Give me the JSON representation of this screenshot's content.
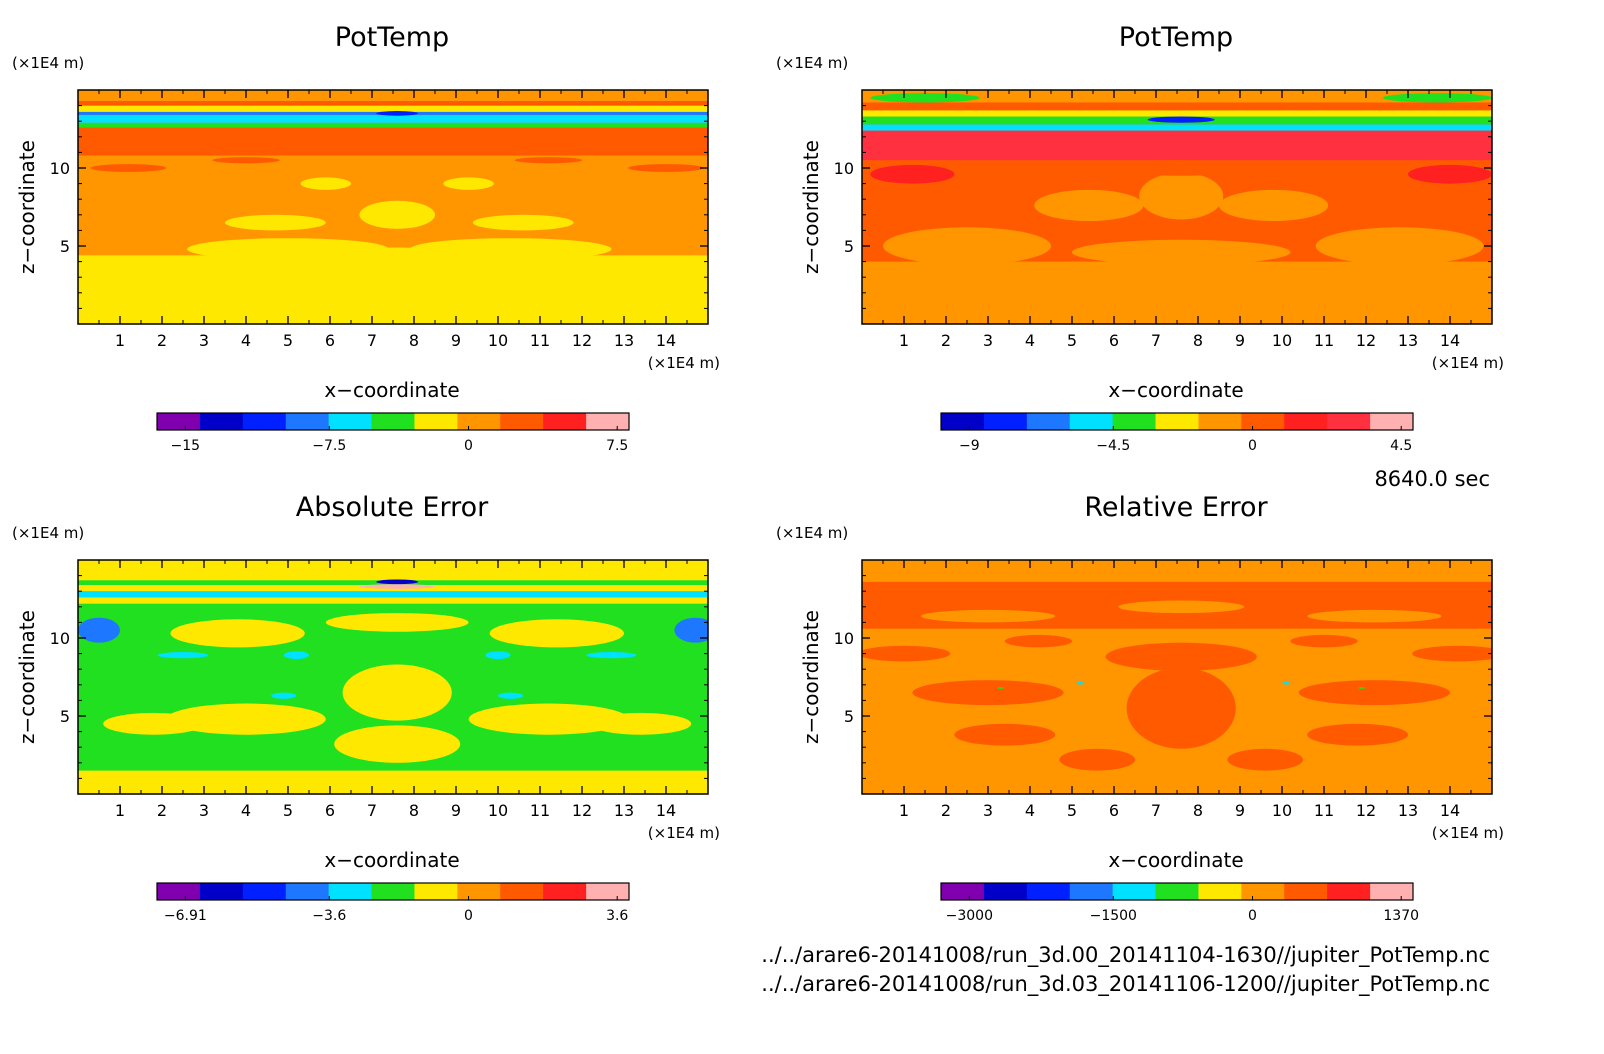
{
  "footer": {
    "time": "8640.0 sec",
    "files": [
      "../../arare6-20141008/run_3d.00_20141104-1630//jupiter_PotTemp.nc",
      "../../arare6-20141008/run_3d.03_20141106-1200//jupiter_PotTemp.nc"
    ]
  },
  "chart_data": [
    {
      "type": "heatmap",
      "title": "PotTemp",
      "xlabel": "x−coordinate",
      "ylabel": "z−coordinate",
      "x_unit": "(×1E4 m)",
      "y_unit": "(×1E4 m)",
      "x_ticks": [
        "1",
        "2",
        "3",
        "4",
        "5",
        "6",
        "7",
        "8",
        "9",
        "10",
        "11",
        "12",
        "13",
        "14"
      ],
      "y_ticks": [
        "5",
        "10"
      ],
      "xlim": [
        0,
        15
      ],
      "ylim": [
        0,
        15
      ],
      "colorbar": {
        "colors": [
          "#8000b0",
          "#0000c8",
          "#0020ff",
          "#1e78ff",
          "#00e0ff",
          "#20e020",
          "#ffe800",
          "#ff9600",
          "#ff5a00",
          "#ff2020",
          "#ffb0b0"
        ],
        "ticks": [
          "−15",
          "−7.5",
          "0",
          "7.5"
        ]
      },
      "field": {
        "base": 7,
        "bands": [
          {
            "z": [
              0,
              4.4
            ],
            "c": 6
          },
          {
            "z": [
              10.8,
              12.6
            ],
            "c": 8
          },
          {
            "z": [
              12.6,
              12.9
            ],
            "c": 5
          },
          {
            "z": [
              12.9,
              13.4
            ],
            "c": 4
          },
          {
            "z": [
              13.4,
              13.6
            ],
            "c": 3
          },
          {
            "z": [
              13.6,
              14.0
            ],
            "c": 6
          },
          {
            "z": [
              14.0,
              14.3
            ],
            "c": 8
          },
          {
            "z": [
              14.3,
              15.0
            ],
            "c": 7
          }
        ],
        "blobs": [
          {
            "x": 5.0,
            "z": 4.8,
            "rx": 2.4,
            "rz": 0.7,
            "c": 6
          },
          {
            "x": 10.3,
            "z": 4.8,
            "rx": 2.4,
            "rz": 0.7,
            "c": 6
          },
          {
            "x": 7.6,
            "z": 4.2,
            "rx": 1.8,
            "rz": 0.7,
            "c": 6
          },
          {
            "x": 4.7,
            "z": 6.5,
            "rx": 1.2,
            "rz": 0.5,
            "c": 6
          },
          {
            "x": 10.6,
            "z": 6.5,
            "rx": 1.2,
            "rz": 0.5,
            "c": 6
          },
          {
            "x": 7.6,
            "z": 7.0,
            "rx": 0.9,
            "rz": 0.9,
            "c": 6
          },
          {
            "x": 5.9,
            "z": 9.0,
            "rx": 0.6,
            "rz": 0.4,
            "c": 6
          },
          {
            "x": 9.3,
            "z": 9.0,
            "rx": 0.6,
            "rz": 0.4,
            "c": 6
          },
          {
            "x": 1.2,
            "z": 10.0,
            "rx": 0.9,
            "rz": 0.25,
            "c": 8
          },
          {
            "x": 14.0,
            "z": 10.0,
            "rx": 0.9,
            "rz": 0.25,
            "c": 8
          },
          {
            "x": 4.0,
            "z": 10.5,
            "rx": 0.8,
            "rz": 0.2,
            "c": 8
          },
          {
            "x": 11.2,
            "z": 10.5,
            "rx": 0.8,
            "rz": 0.2,
            "c": 8
          },
          {
            "x": 7.6,
            "z": 13.5,
            "rx": 0.5,
            "rz": 0.15,
            "c": 2
          }
        ]
      }
    },
    {
      "type": "heatmap",
      "title": "PotTemp",
      "xlabel": "x−coordinate",
      "ylabel": "z−coordinate",
      "x_unit": "(×1E4 m)",
      "y_unit": "(×1E4 m)",
      "x_ticks": [
        "1",
        "2",
        "3",
        "4",
        "5",
        "6",
        "7",
        "8",
        "9",
        "10",
        "11",
        "12",
        "13",
        "14"
      ],
      "y_ticks": [
        "5",
        "10"
      ],
      "xlim": [
        0,
        15
      ],
      "ylim": [
        0,
        15
      ],
      "colorbar": {
        "colors": [
          "#0000c8",
          "#0020ff",
          "#1e78ff",
          "#00e0ff",
          "#20e020",
          "#ffe800",
          "#ff9600",
          "#ff5a00",
          "#ff2020",
          "#ff3040",
          "#ffb0b0"
        ],
        "ticks": [
          "−9",
          "−4.5",
          "0",
          "4.5"
        ]
      },
      "field": {
        "base": 7,
        "bands": [
          {
            "z": [
              0,
              4.0
            ],
            "c": 6
          },
          {
            "z": [
              10.5,
              12.4
            ],
            "c": 9
          },
          {
            "z": [
              12.4,
              12.8
            ],
            "c": 3
          },
          {
            "z": [
              12.8,
              13.3
            ],
            "c": 4
          },
          {
            "z": [
              13.3,
              13.7
            ],
            "c": 5
          },
          {
            "z": [
              13.7,
              14.2
            ],
            "c": 7
          },
          {
            "z": [
              14.2,
              15.0
            ],
            "c": 6
          }
        ],
        "blobs": [
          {
            "x": 2.5,
            "z": 5.0,
            "rx": 2.0,
            "rz": 1.2,
            "c": 6
          },
          {
            "x": 12.8,
            "z": 5.0,
            "rx": 2.0,
            "rz": 1.2,
            "c": 6
          },
          {
            "x": 7.6,
            "z": 4.6,
            "rx": 2.6,
            "rz": 0.8,
            "c": 6
          },
          {
            "x": 5.4,
            "z": 7.6,
            "rx": 1.3,
            "rz": 1.0,
            "c": 6
          },
          {
            "x": 9.8,
            "z": 7.6,
            "rx": 1.3,
            "rz": 1.0,
            "c": 6
          },
          {
            "x": 7.6,
            "z": 8.2,
            "rx": 1.0,
            "rz": 1.5,
            "c": 6
          },
          {
            "x": 7.6,
            "z": 10.0,
            "rx": 1.6,
            "rz": 0.5,
            "c": 7
          },
          {
            "x": 1.2,
            "z": 9.6,
            "rx": 1.0,
            "rz": 0.6,
            "c": 8
          },
          {
            "x": 14.0,
            "z": 9.6,
            "rx": 1.0,
            "rz": 0.6,
            "c": 8
          },
          {
            "x": 7.6,
            "z": 13.1,
            "rx": 0.8,
            "rz": 0.2,
            "c": 1
          },
          {
            "x": 1.5,
            "z": 14.5,
            "rx": 1.3,
            "rz": 0.3,
            "c": 4
          },
          {
            "x": 13.7,
            "z": 14.5,
            "rx": 1.3,
            "rz": 0.3,
            "c": 4
          }
        ]
      }
    },
    {
      "type": "heatmap",
      "title": "Absolute Error",
      "xlabel": "x−coordinate",
      "ylabel": "z−coordinate",
      "x_unit": "(×1E4 m)",
      "y_unit": "(×1E4 m)",
      "x_ticks": [
        "1",
        "2",
        "3",
        "4",
        "5",
        "6",
        "7",
        "8",
        "9",
        "10",
        "11",
        "12",
        "13",
        "14"
      ],
      "y_ticks": [
        "5",
        "10"
      ],
      "xlim": [
        0,
        15
      ],
      "ylim": [
        0,
        15
      ],
      "colorbar": {
        "colors": [
          "#8000b0",
          "#0000c8",
          "#0020ff",
          "#1e78ff",
          "#00e0ff",
          "#20e020",
          "#ffe800",
          "#ff9600",
          "#ff5a00",
          "#ff2020",
          "#ffb0b0"
        ],
        "ticks": [
          "−6.91",
          "−3.6",
          "0",
          "3.6"
        ]
      },
      "field": {
        "base": 5,
        "bands": [
          {
            "z": [
              0,
              1.5
            ],
            "c": 6
          },
          {
            "z": [
              12.2,
              12.6
            ],
            "c": 6
          },
          {
            "z": [
              12.6,
              13.0
            ],
            "c": 4
          },
          {
            "z": [
              13.0,
              13.4
            ],
            "c": 6
          },
          {
            "z": [
              13.4,
              13.7
            ],
            "c": 5
          },
          {
            "z": [
              13.7,
              15.0
            ],
            "c": 6
          }
        ],
        "blobs": [
          {
            "x": 7.6,
            "z": 6.5,
            "rx": 1.3,
            "rz": 1.8,
            "c": 6
          },
          {
            "x": 7.6,
            "z": 3.2,
            "rx": 1.5,
            "rz": 1.2,
            "c": 6
          },
          {
            "x": 4.0,
            "z": 4.8,
            "rx": 1.9,
            "rz": 1.0,
            "c": 6
          },
          {
            "x": 11.2,
            "z": 4.8,
            "rx": 1.9,
            "rz": 1.0,
            "c": 6
          },
          {
            "x": 3.8,
            "z": 10.3,
            "rx": 1.6,
            "rz": 0.9,
            "c": 6
          },
          {
            "x": 11.4,
            "z": 10.3,
            "rx": 1.6,
            "rz": 0.9,
            "c": 6
          },
          {
            "x": 7.6,
            "z": 11.0,
            "rx": 1.7,
            "rz": 0.6,
            "c": 6
          },
          {
            "x": 1.8,
            "z": 4.5,
            "rx": 1.2,
            "rz": 0.7,
            "c": 6
          },
          {
            "x": 13.4,
            "z": 4.5,
            "rx": 1.2,
            "rz": 0.7,
            "c": 6
          },
          {
            "x": 0.5,
            "z": 10.5,
            "rx": 0.5,
            "rz": 0.8,
            "c": 3
          },
          {
            "x": 14.7,
            "z": 10.5,
            "rx": 0.5,
            "rz": 0.8,
            "c": 3
          },
          {
            "x": 2.5,
            "z": 8.9,
            "rx": 0.6,
            "rz": 0.2,
            "c": 4
          },
          {
            "x": 12.7,
            "z": 8.9,
            "rx": 0.6,
            "rz": 0.2,
            "c": 4
          },
          {
            "x": 5.2,
            "z": 8.9,
            "rx": 0.3,
            "rz": 0.25,
            "c": 4
          },
          {
            "x": 10.0,
            "z": 8.9,
            "rx": 0.3,
            "rz": 0.25,
            "c": 4
          },
          {
            "x": 7.6,
            "z": 13.3,
            "rx": 0.9,
            "rz": 0.15,
            "c": 10
          },
          {
            "x": 7.6,
            "z": 13.6,
            "rx": 0.5,
            "rz": 0.15,
            "c": 1
          },
          {
            "x": 4.9,
            "z": 6.3,
            "rx": 0.3,
            "rz": 0.2,
            "c": 4
          },
          {
            "x": 10.3,
            "z": 6.3,
            "rx": 0.3,
            "rz": 0.2,
            "c": 4
          }
        ]
      }
    },
    {
      "type": "heatmap",
      "title": "Relative Error",
      "xlabel": "x−coordinate",
      "ylabel": "z−coordinate",
      "x_unit": "(×1E4 m)",
      "y_unit": "(×1E4 m)",
      "x_ticks": [
        "1",
        "2",
        "3",
        "4",
        "5",
        "6",
        "7",
        "8",
        "9",
        "10",
        "11",
        "12",
        "13",
        "14"
      ],
      "y_ticks": [
        "5",
        "10"
      ],
      "xlim": [
        0,
        15
      ],
      "ylim": [
        0,
        15
      ],
      "colorbar": {
        "colors": [
          "#8000b0",
          "#0000c8",
          "#0020ff",
          "#1e78ff",
          "#00e0ff",
          "#20e020",
          "#ffe800",
          "#ff9600",
          "#ff5a00",
          "#ff2020",
          "#ffb0b0"
        ],
        "ticks": [
          "−3000",
          "−1500",
          "0",
          "1370"
        ]
      },
      "field": {
        "base": 7,
        "bands": [
          {
            "z": [
              10.6,
              13.6
            ],
            "c": 8
          },
          {
            "z": [
              14.4,
              15.0
            ],
            "c": 7
          }
        ],
        "blobs": [
          {
            "x": 7.6,
            "z": 5.5,
            "rx": 1.3,
            "rz": 2.6,
            "c": 8
          },
          {
            "x": 7.6,
            "z": 8.8,
            "rx": 1.8,
            "rz": 0.9,
            "c": 8
          },
          {
            "x": 3.0,
            "z": 6.5,
            "rx": 1.8,
            "rz": 0.8,
            "c": 8
          },
          {
            "x": 12.2,
            "z": 6.5,
            "rx": 1.8,
            "rz": 0.8,
            "c": 8
          },
          {
            "x": 3.4,
            "z": 3.8,
            "rx": 1.2,
            "rz": 0.7,
            "c": 8
          },
          {
            "x": 11.8,
            "z": 3.8,
            "rx": 1.2,
            "rz": 0.7,
            "c": 8
          },
          {
            "x": 5.6,
            "z": 2.2,
            "rx": 0.9,
            "rz": 0.7,
            "c": 8
          },
          {
            "x": 9.6,
            "z": 2.2,
            "rx": 0.9,
            "rz": 0.7,
            "c": 8
          },
          {
            "x": 1.0,
            "z": 9.0,
            "rx": 1.1,
            "rz": 0.5,
            "c": 8
          },
          {
            "x": 14.2,
            "z": 9.0,
            "rx": 1.1,
            "rz": 0.5,
            "c": 8
          },
          {
            "x": 4.2,
            "z": 9.8,
            "rx": 0.8,
            "rz": 0.4,
            "c": 8
          },
          {
            "x": 11.0,
            "z": 9.8,
            "rx": 0.8,
            "rz": 0.4,
            "c": 8
          },
          {
            "x": 3.0,
            "z": 11.4,
            "rx": 1.6,
            "rz": 0.4,
            "c": 7
          },
          {
            "x": 12.2,
            "z": 11.4,
            "rx": 1.6,
            "rz": 0.4,
            "c": 7
          },
          {
            "x": 7.6,
            "z": 12.0,
            "rx": 1.5,
            "rz": 0.4,
            "c": 7
          },
          {
            "x": 5.2,
            "z": 7.1,
            "rx": 0.1,
            "rz": 0.08,
            "c": 4
          },
          {
            "x": 10.1,
            "z": 7.1,
            "rx": 0.1,
            "rz": 0.08,
            "c": 4
          },
          {
            "x": 3.3,
            "z": 6.8,
            "rx": 0.08,
            "rz": 0.06,
            "c": 5
          },
          {
            "x": 11.9,
            "z": 6.8,
            "rx": 0.08,
            "rz": 0.06,
            "c": 5
          }
        ]
      }
    }
  ]
}
